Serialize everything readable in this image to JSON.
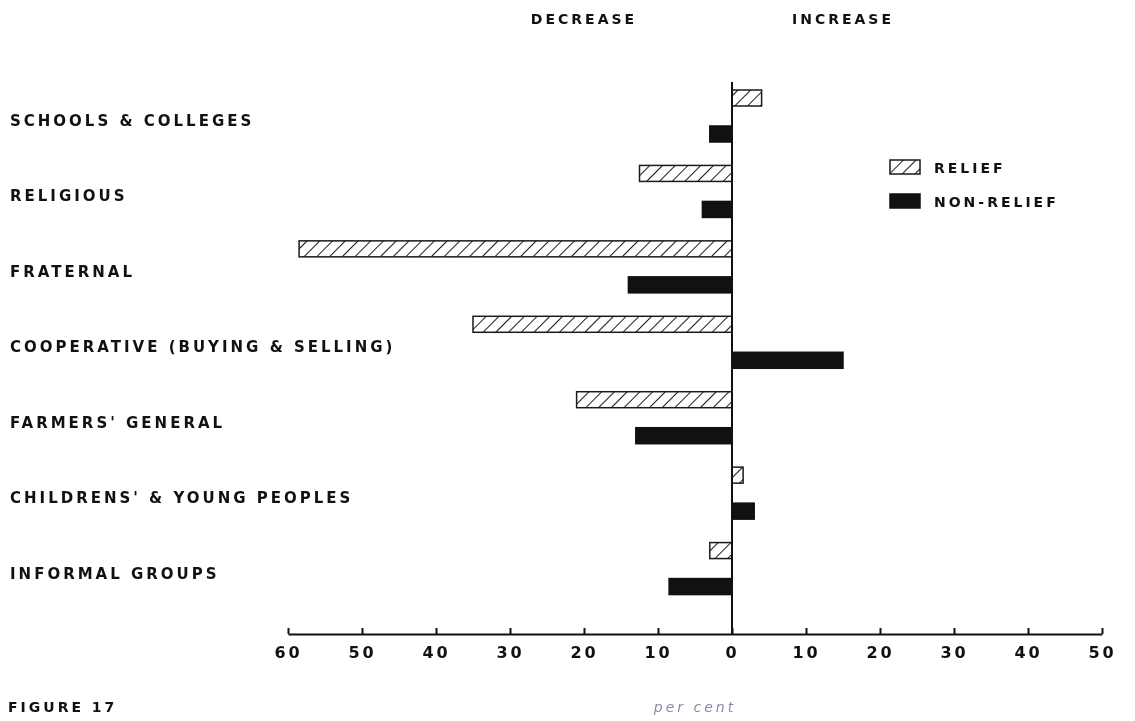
{
  "chart_data": {
    "type": "bar",
    "orientation": "horizontal",
    "categories": [
      "SCHOOLS & COLLEGES",
      "RELIGIOUS",
      "FRATERNAL",
      "COOPERATIVE (BUYING & SELLING)",
      "FARMERS' GENERAL",
      "CHILDRENS' & YOUNG PEOPLES",
      "INFORMAL GROUPS"
    ],
    "series": [
      {
        "name": "RELIEF",
        "color": "#1a1a1a",
        "values": [
          4,
          -12.5,
          -58.5,
          -35,
          -21,
          1.5,
          -3
        ]
      },
      {
        "name": "NON-RELIEF",
        "color": "#111111",
        "values": [
          -3,
          -4,
          -14,
          15,
          -13,
          3,
          -8.5
        ]
      }
    ],
    "xlim": [
      -60,
      50
    ],
    "xticks": [
      {
        "value": -60,
        "label": "60"
      },
      {
        "value": -50,
        "label": "50"
      },
      {
        "value": -40,
        "label": "40"
      },
      {
        "value": -30,
        "label": "30"
      },
      {
        "value": -20,
        "label": "20"
      },
      {
        "value": -10,
        "label": "10"
      },
      0,
      10,
      20,
      30,
      40,
      50
    ],
    "xlabel": "per cent",
    "legend": "top right",
    "annotations": [
      "DECREASE",
      "INCREASE",
      "FIGURE 17"
    ]
  }
}
